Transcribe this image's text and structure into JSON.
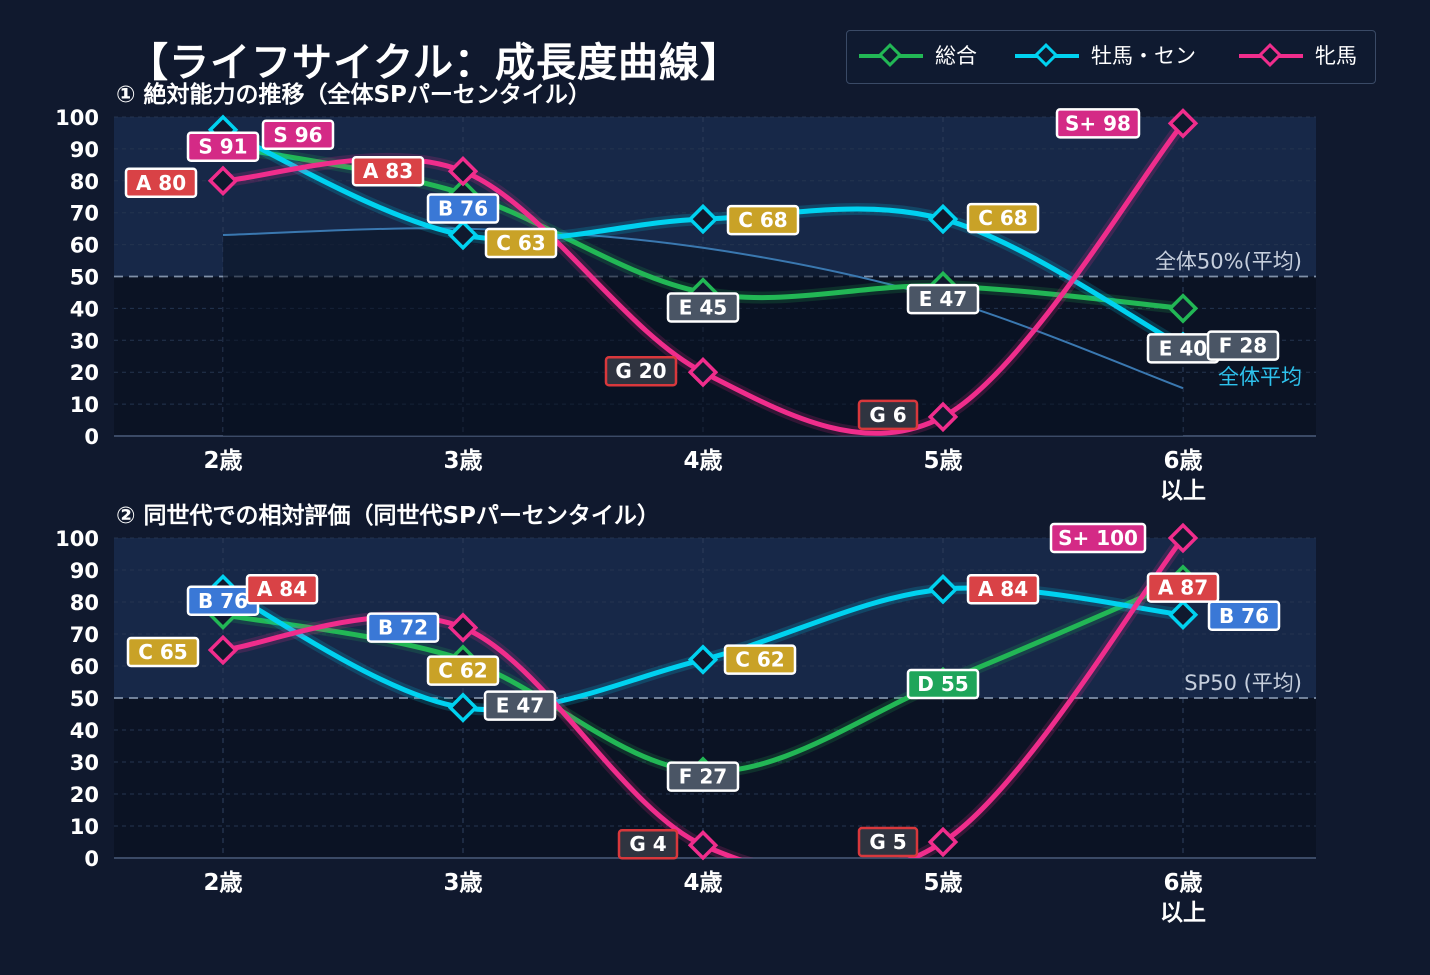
{
  "title": "【ライフサイクル：成長度曲線】",
  "legend": [
    {
      "name": "総合",
      "color": "#22b755"
    },
    {
      "name": "牡馬・セン",
      "color": "#00d2f0"
    },
    {
      "name": "牝馬",
      "color": "#f02d8c"
    }
  ],
  "chart_data": [
    {
      "type": "line",
      "title": "① 絶対能力の推移（全体SPパーセンタイル）",
      "categories": [
        "2歳",
        "3歳",
        "4歳",
        "5歳",
        "6歳\n以上"
      ],
      "ylim": [
        0,
        100
      ],
      "yticks": [
        0,
        10,
        20,
        30,
        40,
        50,
        60,
        70,
        80,
        90,
        100
      ],
      "grid": true,
      "reference_line": {
        "value": 50,
        "label": "全体50%(平均)"
      },
      "average_curve": {
        "label": "全体平均",
        "values": [
          63,
          65,
          59,
          43,
          15
        ]
      },
      "series": [
        {
          "name": "総合",
          "values": [
            91,
            76,
            45,
            47,
            40
          ],
          "labels": [
            "S 91",
            "B 76",
            "E 45",
            "E 47",
            "E 40"
          ]
        },
        {
          "name": "牡馬・セン",
          "values": [
            96,
            63,
            68,
            68,
            28
          ],
          "labels": [
            "S 96",
            "C 63",
            "C 68",
            "C 68",
            "F 28"
          ]
        },
        {
          "name": "牝馬",
          "values": [
            80,
            83,
            20,
            6,
            98
          ],
          "labels": [
            "A 80",
            "A 83",
            "G 20",
            "G 6",
            "S+ 98"
          ]
        }
      ]
    },
    {
      "type": "line",
      "title": "② 同世代での相対評価（同世代SPパーセンタイル）",
      "categories": [
        "2歳",
        "3歳",
        "4歳",
        "5歳",
        "6歳\n以上"
      ],
      "ylim": [
        0,
        100
      ],
      "yticks": [
        0,
        10,
        20,
        30,
        40,
        50,
        60,
        70,
        80,
        90,
        100
      ],
      "grid": true,
      "reference_line": {
        "value": 50,
        "label": "SP50 (平均)"
      },
      "series": [
        {
          "name": "総合",
          "values": [
            76,
            62,
            27,
            55,
            87
          ],
          "labels": [
            "B 76",
            "C 62",
            "F 27",
            "D 55",
            "A 87"
          ]
        },
        {
          "name": "牡馬・セン",
          "values": [
            84,
            47,
            62,
            84,
            76
          ],
          "labels": [
            "A 84",
            "E 47",
            "C 62",
            "A 84",
            "B 76"
          ]
        },
        {
          "name": "牝馬",
          "values": [
            65,
            72,
            4,
            5,
            100
          ],
          "labels": [
            "C 65",
            "B 72",
            "G 4",
            "G 5",
            "S+ 100"
          ]
        }
      ]
    }
  ]
}
